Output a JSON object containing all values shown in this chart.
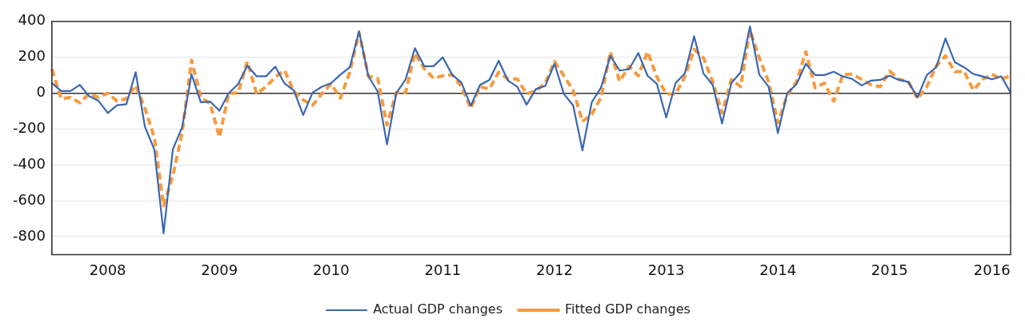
{
  "chart_data": {
    "type": "line",
    "categories": [
      null,
      null,
      null,
      null,
      null,
      null,
      "2008",
      null,
      null,
      null,
      null,
      null,
      null,
      null,
      null,
      null,
      null,
      null,
      "2009",
      null,
      null,
      null,
      null,
      null,
      null,
      null,
      null,
      null,
      null,
      null,
      "2010",
      null,
      null,
      null,
      null,
      null,
      null,
      null,
      null,
      null,
      null,
      null,
      "2011",
      null,
      null,
      null,
      null,
      null,
      null,
      null,
      null,
      null,
      null,
      null,
      "2012",
      null,
      null,
      null,
      null,
      null,
      null,
      null,
      null,
      null,
      null,
      null,
      "2013",
      null,
      null,
      null,
      null,
      null,
      null,
      null,
      null,
      null,
      null,
      null,
      "2014",
      null,
      null,
      null,
      null,
      null,
      null,
      null,
      null,
      null,
      null,
      null,
      "2015",
      null,
      null,
      null,
      null,
      null,
      null,
      null,
      null,
      null,
      null,
      "2016",
      null,
      null
    ],
    "series": [
      {
        "name": "Actual GDP changes",
        "color": "#3a67b0",
        "line_style": "solid",
        "values": [
          56,
          12,
          12,
          46,
          -17,
          -42,
          -111,
          -67,
          -62,
          117,
          -188,
          -313,
          -782,
          -313,
          -189,
          106,
          -51,
          -47,
          -98,
          0,
          50,
          154,
          94,
          94,
          148,
          54,
          15,
          -122,
          3,
          36,
          56,
          103,
          144,
          345,
          95,
          9,
          -286,
          0,
          76,
          251,
          150,
          150,
          200,
          103,
          59,
          -71,
          46,
          74,
          181,
          70,
          36,
          -64,
          23,
          40,
          164,
          -4,
          -68,
          -319,
          -51,
          32,
          208,
          126,
          133,
          224,
          97,
          52,
          -136,
          56,
          110,
          318,
          110,
          46,
          -169,
          56,
          117,
          372,
          103,
          36,
          -223,
          0,
          50,
          164,
          101,
          101,
          119,
          93,
          79,
          43,
          70,
          74,
          97,
          74,
          63,
          -24,
          101,
          144,
          305,
          173,
          144,
          107,
          93,
          77,
          94,
          3
        ]
      },
      {
        "name": "Fitted GDP changes",
        "color": "#f79a3e",
        "line_style": "dashed",
        "values": [
          133,
          -31,
          -24,
          -54,
          -4,
          -24,
          0,
          -44,
          -31,
          43,
          -85,
          -246,
          -628,
          -460,
          -219,
          184,
          -24,
          -58,
          -246,
          0,
          0,
          177,
          -4,
          36,
          90,
          127,
          9,
          -38,
          -68,
          -4,
          52,
          -28,
          117,
          338,
          95,
          83,
          -178,
          3,
          3,
          224,
          137,
          83,
          97,
          103,
          36,
          -85,
          36,
          23,
          117,
          79,
          79,
          -4,
          12,
          56,
          177,
          97,
          16,
          -158,
          -118,
          -24,
          231,
          66,
          150,
          97,
          231,
          90,
          -4,
          -4,
          90,
          244,
          197,
          63,
          -111,
          77,
          36,
          352,
          197,
          63,
          -165,
          -11,
          63,
          231,
          30,
          56,
          -44,
          105,
          106,
          77,
          47,
          36,
          123,
          77,
          66,
          -31,
          36,
          150,
          208,
          119,
          123,
          16,
          77,
          106,
          77,
          97
        ]
      }
    ],
    "ylim": [
      -900,
      400
    ],
    "yticks": [
      -800,
      -600,
      -400,
      -200,
      0,
      200,
      400
    ],
    "grid": "y",
    "legend": "bottom",
    "marker": "none"
  }
}
